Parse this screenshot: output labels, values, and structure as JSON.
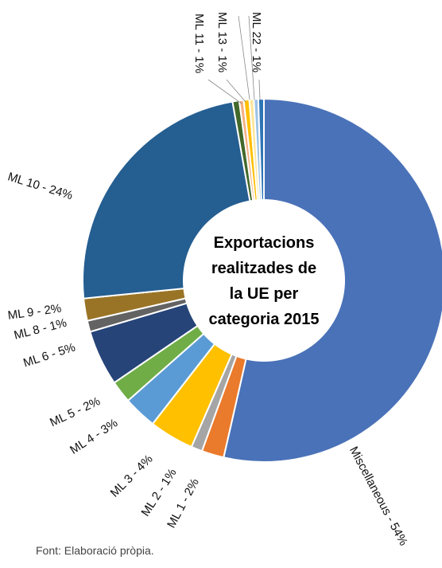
{
  "chart_data": {
    "type": "donut",
    "title_lines": [
      "Exportacions",
      "realitzades de",
      "la UE per",
      "categoria  2015"
    ],
    "source": "Font: Elaboració pròpia.",
    "categories": [
      "Miscellaneous - 54%",
      "ML 1 - 2%",
      "ML 2 - 1%",
      "ML 3 - 4%",
      "ML 4 - 3%",
      "ML 5 - 2%",
      "ML 6 - 5%",
      "ML 8 - 1%",
      "ML 9 - 2%",
      "ML 10 - 24%",
      "ML 11 - 1%",
      null,
      "ML 13 - 1%",
      null,
      null,
      "ML 22 - 1%"
    ],
    "values": [
      54,
      2,
      1,
      4,
      3,
      2,
      5,
      1,
      2,
      24,
      0.6,
      0.4,
      0.5,
      0.4,
      0.4,
      0.5
    ],
    "colors": [
      "#4a72b8",
      "#ea7a2c",
      "#a5a5a5",
      "#ffc000",
      "#5b9bd5",
      "#70ad47",
      "#264478",
      "#636363",
      "#9a7426",
      "#255e91",
      "#43682b",
      "#f4b183",
      "#ffc000",
      "#ffe699",
      "#9dc3e6",
      "#2e75b6"
    ]
  }
}
